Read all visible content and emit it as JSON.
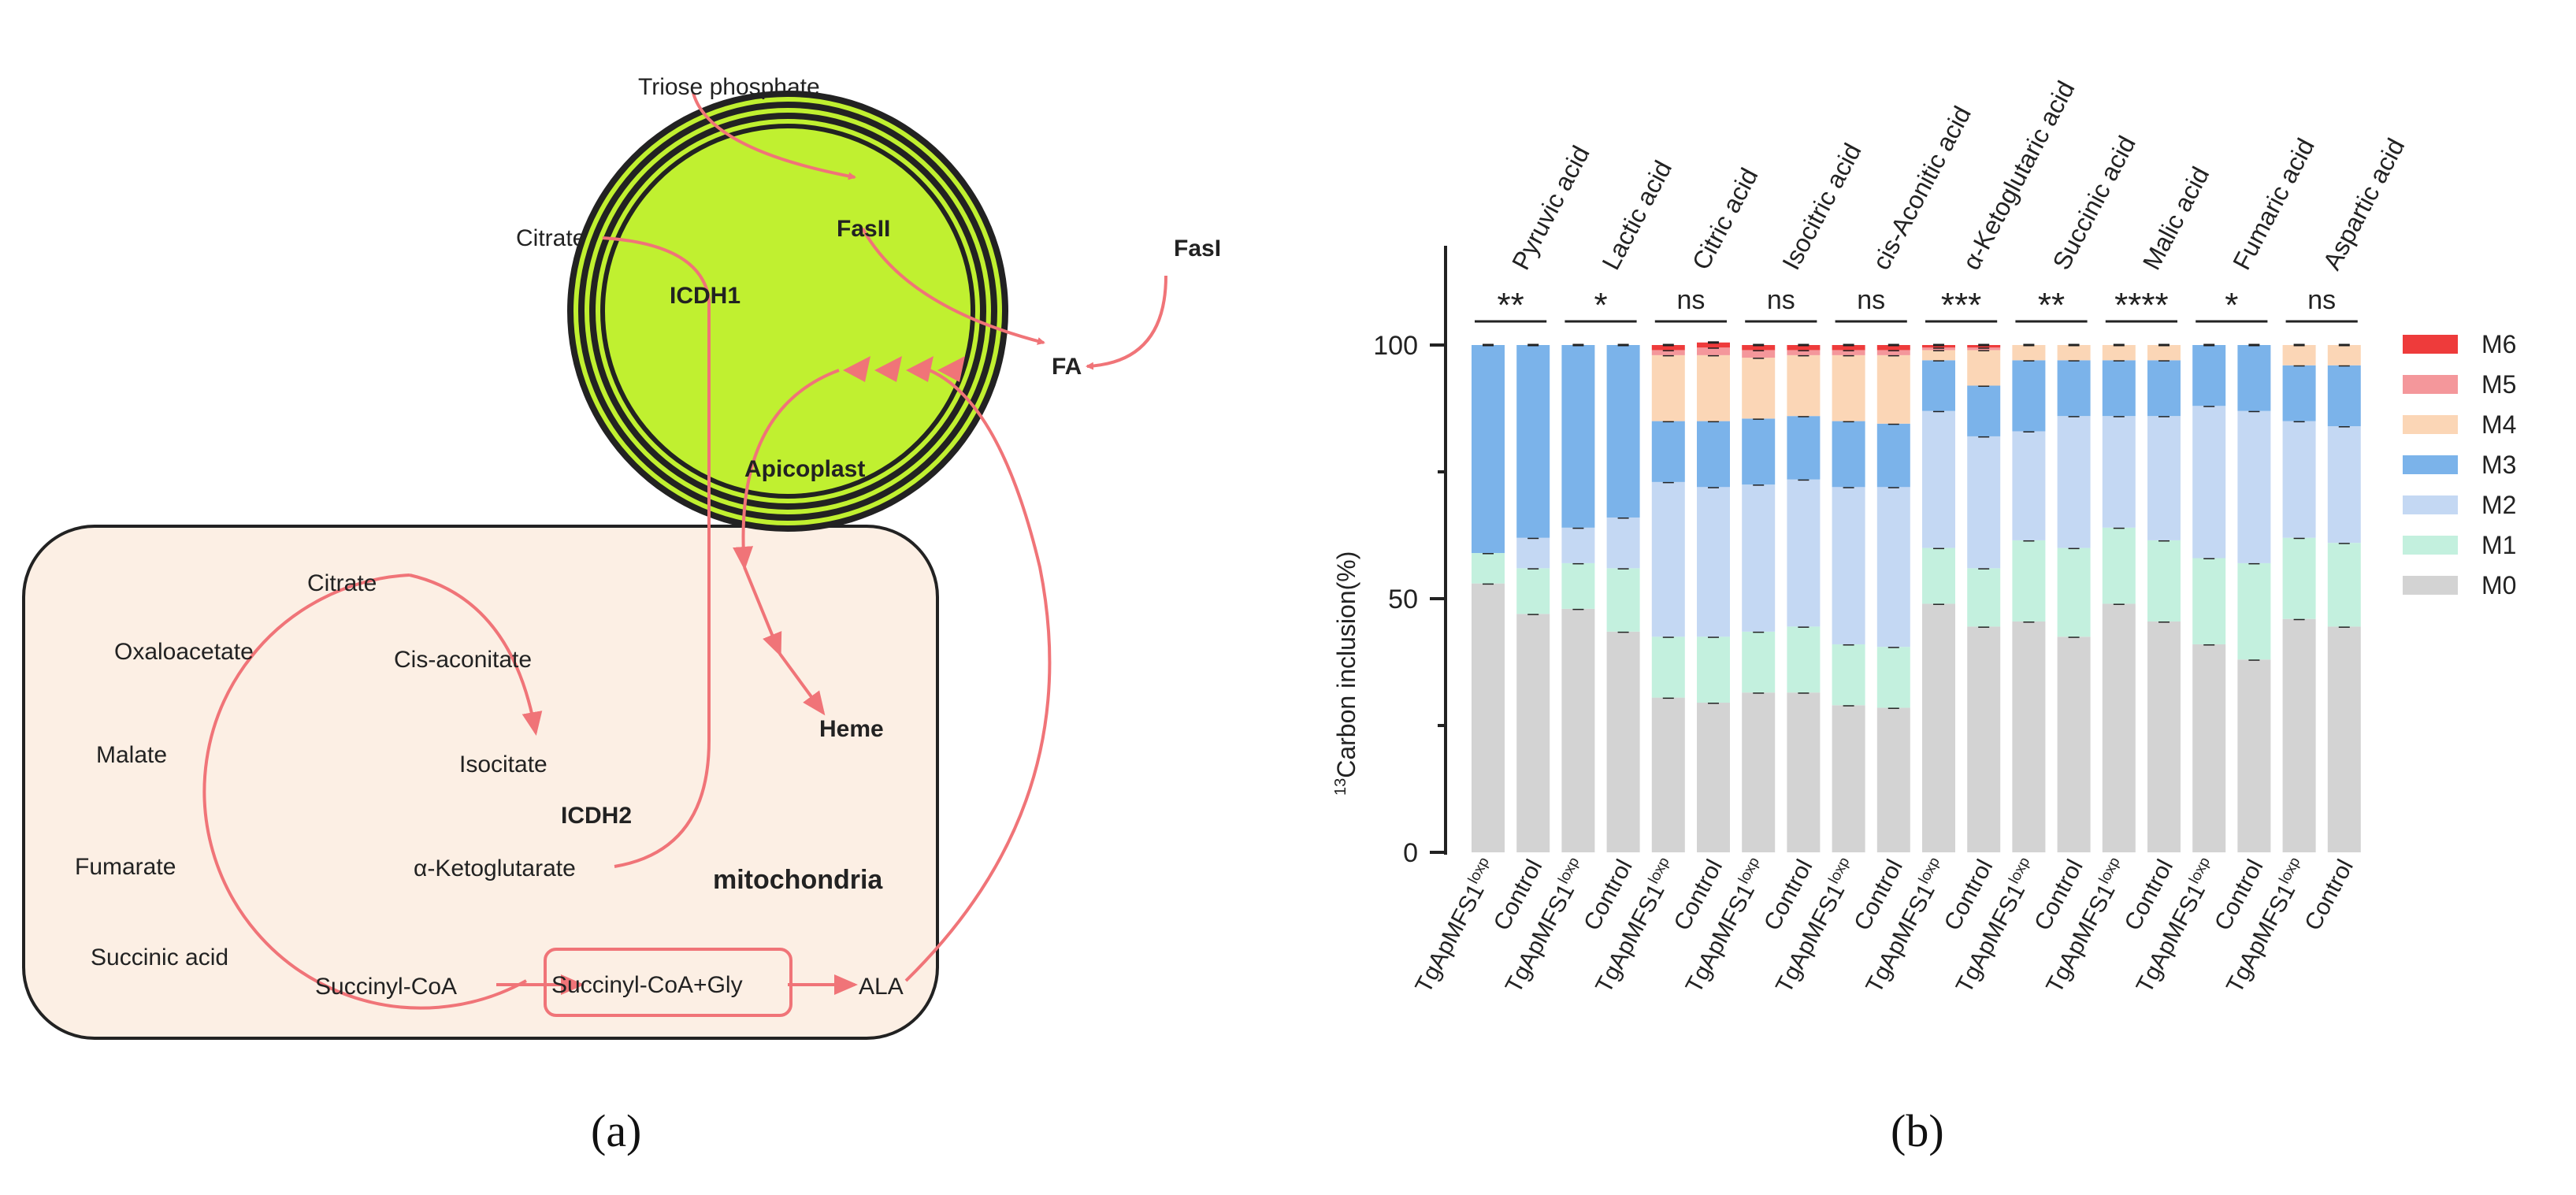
{
  "panel_a": {
    "label": "(a)",
    "colors": {
      "arrow": "#f07478",
      "organelle": "#c0f030",
      "mito": "#fcefe4"
    },
    "labels": {
      "triose": "Triose phosphate",
      "citrate_top": "Citrate",
      "fasII": "FasII",
      "icdh1": "ICDH1",
      "fasI": "FasI",
      "fa": "FA",
      "apicoplast": "Apicoplast",
      "heme": "Heme",
      "citrate": "Citrate",
      "oxaloacetate": "Oxaloacetate",
      "cis_aconitate": "Cis-aconitate",
      "malate": "Malate",
      "isocitate": "Isocitate",
      "icdh2": "ICDH2",
      "fumarate": "Fumarate",
      "akg": "α-Ketoglutarate",
      "mitochondria": "mitochondria",
      "succinic": "Succinic acid",
      "succinyl_coa": "Succinyl-CoA",
      "succinyl_gly": "Succinyl-CoA+Gly",
      "ala": "ALA"
    }
  },
  "panel_b": {
    "label": "(b)",
    "ylabel_sup": "13",
    "ylabel_rest": "Carbon inclusion(%)"
  },
  "chart_data": {
    "type": "stacked-bar",
    "ylabel": "13Carbon inclusion(%)",
    "ylim": [
      0,
      100
    ],
    "yticks": [
      0,
      50,
      100
    ],
    "groups": [
      "Pyruvic acid",
      "Lactic acid",
      "Citric acid",
      "Isocitric acid",
      "cis-Aconitic acid",
      "α-Ketoglutaric acid",
      "Succinic acid",
      "Malic acid",
      "Fumaric acid",
      "Aspartic acid"
    ],
    "significance": [
      "**",
      "*",
      "ns",
      "ns",
      "ns",
      "***",
      "**",
      "****",
      "*",
      "ns"
    ],
    "bar_labels": {
      "mutant": "TgApMFS1",
      "mutant_sup": "loxp",
      "control": "Control"
    },
    "legend": [
      {
        "name": "M6",
        "color": "#ee3b3b"
      },
      {
        "name": "M5",
        "color": "#f4979b"
      },
      {
        "name": "M4",
        "color": "#fbd6b6"
      },
      {
        "name": "M3",
        "color": "#7bb3ea"
      },
      {
        "name": "M2",
        "color": "#c4d8f3"
      },
      {
        "name": "M1",
        "color": "#c3f0de"
      },
      {
        "name": "M0",
        "color": "#d3d3d3"
      }
    ],
    "series_order_bottom_to_top": [
      "M0",
      "M1",
      "M2",
      "M3",
      "M4",
      "M5",
      "M6"
    ],
    "bars": [
      {
        "group": "Pyruvic acid",
        "sample": "TgApMFS1loxp",
        "M0": 53,
        "M1": 6,
        "M2": 0,
        "M3": 41,
        "M4": 0,
        "M5": 0,
        "M6": 0
      },
      {
        "group": "Pyruvic acid",
        "sample": "Control",
        "M0": 47,
        "M1": 9,
        "M2": 6,
        "M3": 38,
        "M4": 0,
        "M5": 0,
        "M6": 0
      },
      {
        "group": "Lactic acid",
        "sample": "TgApMFS1loxp",
        "M0": 48,
        "M1": 9,
        "M2": 7,
        "M3": 36,
        "M4": 0,
        "M5": 0,
        "M6": 0
      },
      {
        "group": "Lactic acid",
        "sample": "Control",
        "M0": 43.5,
        "M1": 12.5,
        "M2": 10,
        "M3": 34,
        "M4": 0,
        "M5": 0,
        "M6": 0
      },
      {
        "group": "Citric acid",
        "sample": "TgApMFS1loxp",
        "M0": 30.5,
        "M1": 12,
        "M2": 30.5,
        "M3": 12,
        "M4": 13,
        "M5": 1,
        "M6": 1
      },
      {
        "group": "Citric acid",
        "sample": "Control",
        "M0": 29.5,
        "M1": 13,
        "M2": 29.5,
        "M3": 13,
        "M4": 13,
        "M5": 1.5,
        "M6": 1
      },
      {
        "group": "Isocitric acid",
        "sample": "TgApMFS1loxp",
        "M0": 31.5,
        "M1": 12,
        "M2": 29,
        "M3": 13,
        "M4": 12,
        "M5": 1.5,
        "M6": 1
      },
      {
        "group": "Isocitric acid",
        "sample": "Control",
        "M0": 31.5,
        "M1": 13,
        "M2": 29,
        "M3": 12.5,
        "M4": 12,
        "M5": 1,
        "M6": 1
      },
      {
        "group": "cis-Aconitic acid",
        "sample": "TgApMFS1loxp",
        "M0": 29,
        "M1": 12,
        "M2": 31,
        "M3": 13,
        "M4": 13,
        "M5": 1,
        "M6": 1
      },
      {
        "group": "cis-Aconitic acid",
        "sample": "Control",
        "M0": 28.5,
        "M1": 12,
        "M2": 31.5,
        "M3": 12.5,
        "M4": 13.5,
        "M5": 1,
        "M6": 1
      },
      {
        "group": "α-Ketoglutaric acid",
        "sample": "TgApMFS1loxp",
        "M0": 49,
        "M1": 11,
        "M2": 27,
        "M3": 10,
        "M4": 2,
        "M5": 0.5,
        "M6": 0.5
      },
      {
        "group": "α-Ketoglutaric acid",
        "sample": "Control",
        "M0": 44.5,
        "M1": 11.5,
        "M2": 26,
        "M3": 10,
        "M4": 7,
        "M5": 0.5,
        "M6": 0.5
      },
      {
        "group": "Succinic acid",
        "sample": "TgApMFS1loxp",
        "M0": 45.5,
        "M1": 16,
        "M2": 21.5,
        "M3": 14,
        "M4": 3,
        "M5": 0,
        "M6": 0
      },
      {
        "group": "Succinic acid",
        "sample": "Control",
        "M0": 42.5,
        "M1": 17.5,
        "M2": 26,
        "M3": 11,
        "M4": 3,
        "M5": 0,
        "M6": 0
      },
      {
        "group": "Malic acid",
        "sample": "TgApMFS1loxp",
        "M0": 49,
        "M1": 15,
        "M2": 22,
        "M3": 11,
        "M4": 3,
        "M5": 0,
        "M6": 0
      },
      {
        "group": "Malic acid",
        "sample": "Control",
        "M0": 45.5,
        "M1": 16,
        "M2": 24.5,
        "M3": 11,
        "M4": 3,
        "M5": 0,
        "M6": 0
      },
      {
        "group": "Fumaric acid",
        "sample": "TgApMFS1loxp",
        "M0": 41,
        "M1": 17,
        "M2": 30,
        "M3": 12,
        "M4": 0,
        "M5": 0,
        "M6": 0
      },
      {
        "group": "Fumaric acid",
        "sample": "Control",
        "M0": 38,
        "M1": 19,
        "M2": 30,
        "M3": 13,
        "M4": 0,
        "M5": 0,
        "M6": 0
      },
      {
        "group": "Aspartic acid",
        "sample": "TgApMFS1loxp",
        "M0": 46,
        "M1": 16,
        "M2": 23,
        "M3": 11,
        "M4": 4,
        "M5": 0,
        "M6": 0
      },
      {
        "group": "Aspartic acid",
        "sample": "Control",
        "M0": 44.5,
        "M1": 16.5,
        "M2": 23,
        "M3": 12,
        "M4": 4,
        "M5": 0,
        "M6": 0
      }
    ]
  }
}
